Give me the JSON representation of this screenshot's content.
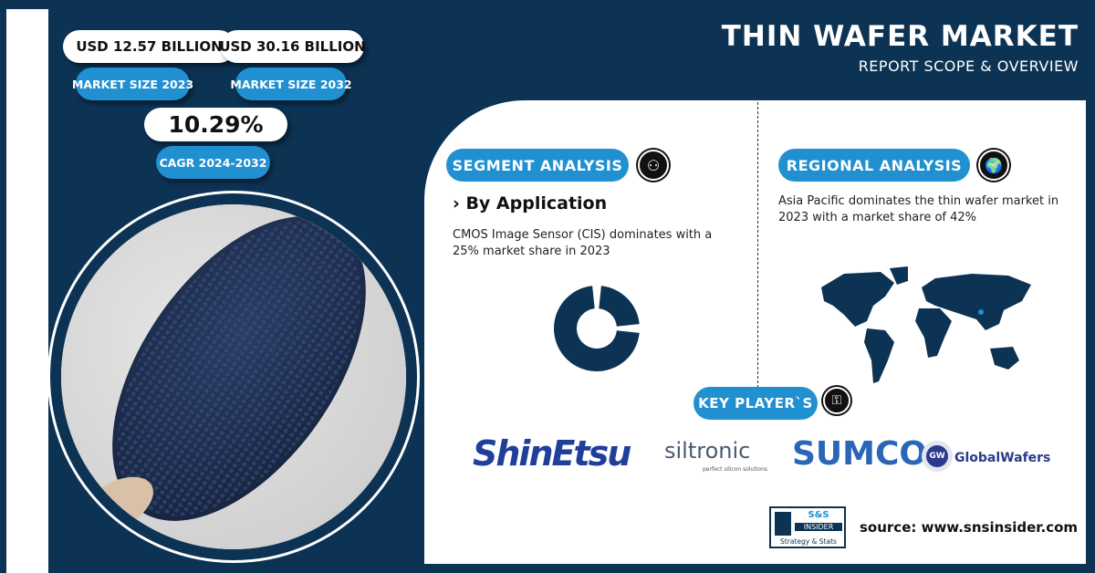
{
  "header": {
    "title": "THIN WAFER MARKET",
    "subtitle": "REPORT SCOPE & OVERVIEW"
  },
  "stats": {
    "market_size_2023_value": "USD 12.57 BILLION",
    "market_size_2023_label": "MARKET SIZE 2023",
    "market_size_2032_value": "USD 30.16 BILLION",
    "market_size_2032_label": "MARKET SIZE 2032",
    "cagr_value": "10.29%",
    "cagr_label": "CAGR 2024-2032"
  },
  "segment": {
    "label": "SEGMENT ANALYSIS",
    "heading": "› By Application",
    "text": "CMOS Image Sensor (CIS) dominates with a 25% market share in 2023",
    "share_percent": 25,
    "icon": "team-segments-icon"
  },
  "regional": {
    "label": "REGIONAL ANALYSIS",
    "text": "Asia Pacific dominates the thin wafer market in 2023 with a market share of 42%",
    "icon": "globe-pin-icon"
  },
  "key_players": {
    "label": "KEY PLAYER`S",
    "icon": "person-key-icon",
    "companies": [
      "ShinEtsu",
      "siltronic",
      "SUMCO",
      "GlobalWafers"
    ],
    "siltronic_tagline": "perfect silicon solutions",
    "globalwafers_badge": "GW"
  },
  "footer": {
    "brand_top": "S&S",
    "brand_mid": "INSIDER",
    "brand_bottom": "Strategy & Stats",
    "source": "source: www.snsinsider.com"
  },
  "colors": {
    "navy": "#0d3354",
    "accent": "#2190d0"
  }
}
